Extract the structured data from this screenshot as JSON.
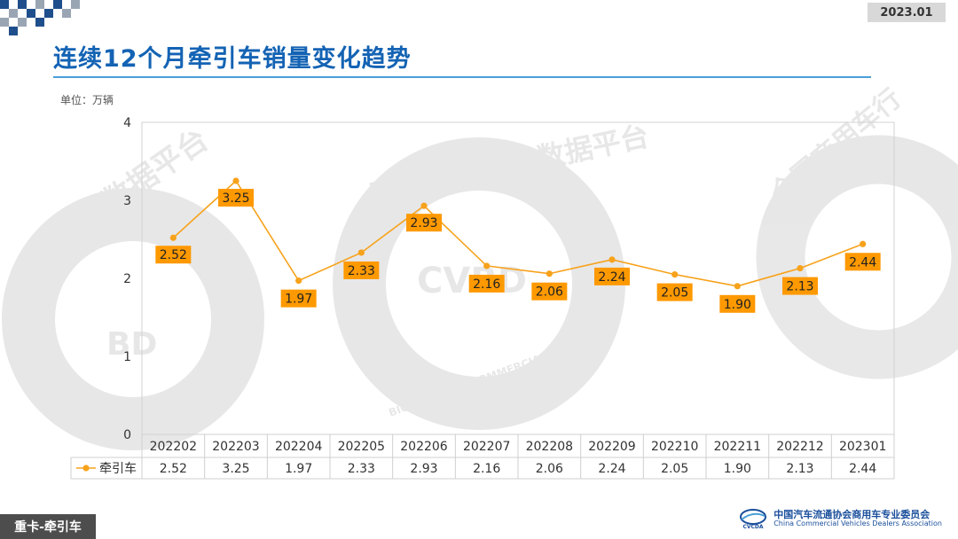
{
  "header": {
    "date": "2023.01",
    "title": "连续12个月牵引车销量变化趋势",
    "unit": "单位：万辆"
  },
  "colors": {
    "accent_blue": "#1463b4",
    "series_orange": "#f7a21b",
    "label_box": "#ff9900",
    "footer_gray": "#4d4d4d"
  },
  "chart_data": {
    "type": "line",
    "title": "连续12个月牵引车销量变化趋势",
    "ylabel": "单位：万辆",
    "ylim": [
      0,
      4
    ],
    "yticks": [
      "0",
      "1",
      "2",
      "3",
      "4"
    ],
    "categories": [
      "202202",
      "202203",
      "202204",
      "202205",
      "202206",
      "202207",
      "202208",
      "202209",
      "202210",
      "202211",
      "202212",
      "202301"
    ],
    "series": [
      {
        "name": "牵引车",
        "values": [
          2.52,
          3.25,
          1.97,
          2.33,
          2.93,
          2.16,
          2.06,
          2.24,
          2.05,
          1.9,
          2.13,
          2.44
        ],
        "labels": [
          "2.52",
          "3.25",
          "1.97",
          "2.33",
          "2.93",
          "2.16",
          "2.06",
          "2.24",
          "2.05",
          "1.90",
          "2.13",
          "2.44"
        ]
      }
    ],
    "data_table": true,
    "grid": false
  },
  "footer": {
    "section_tag": "重卡-牵引车",
    "org_cn": "中国汽车流通协会商用车专业委员会",
    "org_en": "China Commercial Vehicles Dealers Association",
    "logo_text": "CVCDA"
  },
  "watermark": {
    "ring_text_1": "业大数据平台",
    "ring_text_2": "商用车行业大数据平台",
    "ring_text_3": "全国商用车行",
    "center_1": "BD",
    "center_2": "CVBD",
    "en": "BIG DATA FOR COMMERCIAL VEHICLES"
  }
}
